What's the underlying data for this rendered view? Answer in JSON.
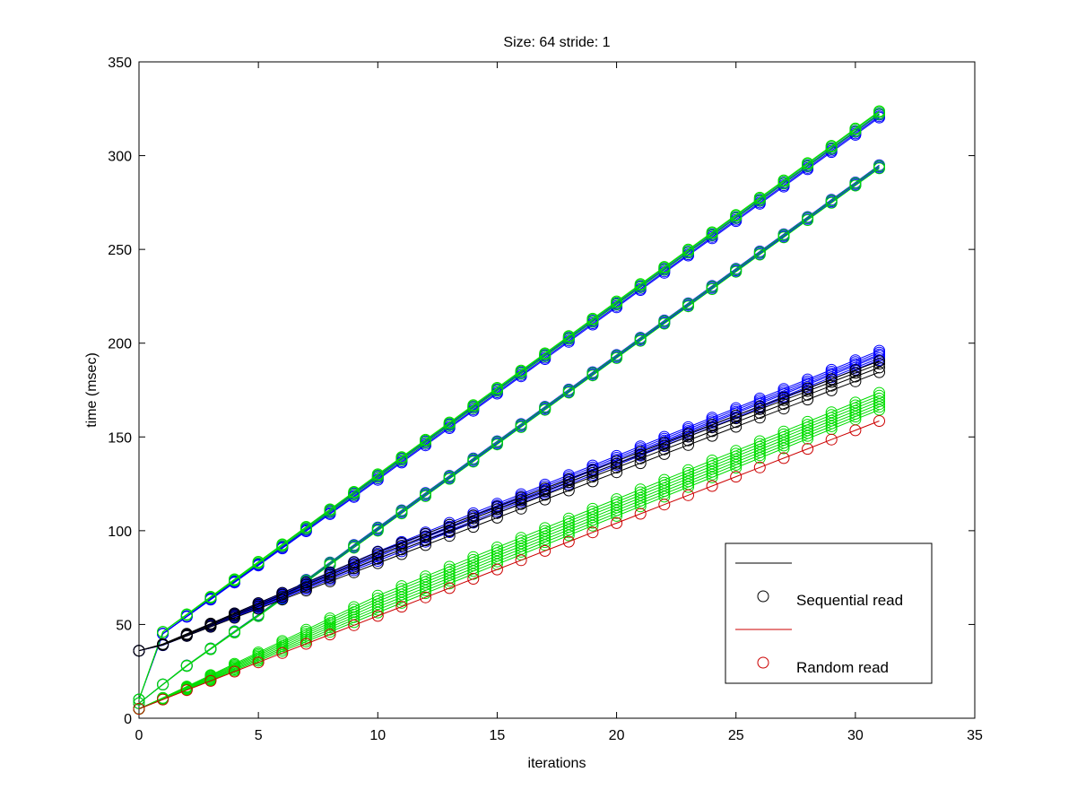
{
  "chart_data": {
    "type": "line",
    "title": "Size: 64 stride: 1",
    "xlabel": "iterations",
    "ylabel": "time (msec)",
    "xlim": [
      0,
      35
    ],
    "ylim": [
      0,
      350
    ],
    "xticks": [
      0,
      5,
      10,
      15,
      20,
      25,
      30,
      35
    ],
    "yticks": [
      0,
      50,
      100,
      150,
      200,
      250,
      300,
      350
    ],
    "grid": false,
    "marker": "circle",
    "legend_position": "bottom-right",
    "legend": [
      {
        "label": "",
        "style": "line",
        "color": "#000000"
      },
      {
        "label": "Sequential read",
        "style": "marker",
        "color": "#000000"
      },
      {
        "label": "",
        "style": "line",
        "color": "#cc0000"
      },
      {
        "label": "Random read",
        "style": "marker",
        "color": "#cc0000"
      }
    ],
    "series": [
      {
        "color": "#0000ff",
        "start": 10,
        "first": 45,
        "slope": 9.2,
        "offsets": [
          0,
          0.8,
          -0.7,
          1.4
        ]
      },
      {
        "color": "#00dd00",
        "start": 10,
        "first": 46,
        "slope": 9.22,
        "offsets": [
          0.6,
          -0.5,
          1.1
        ]
      },
      {
        "color": "#0000ff",
        "start": 8,
        "first": 18,
        "slope": 9.2,
        "first_point_at_x2": 28,
        "override": {
          "2": 28,
          "3": 37,
          "4": 46
        },
        "offsets": [
          0,
          0.9,
          -0.6
        ]
      },
      {
        "color": "#00dd00",
        "start": 8,
        "first": 18,
        "slope": 9.2,
        "override": {
          "2": 28,
          "3": 37,
          "4": 46
        },
        "offsets": [
          0.5,
          -0.8
        ]
      },
      {
        "color": "#0000ff",
        "start": 36,
        "first": 39,
        "slope": 5.1,
        "offsets": [
          0,
          1.2,
          -1.0,
          2.0,
          3.0,
          4.0
        ]
      },
      {
        "color": "#000000",
        "start": 36,
        "first": 39,
        "slope": 4.85,
        "offsets": [
          0,
          2.5,
          4.5,
          6.0
        ]
      },
      {
        "color": "#00dd00",
        "start": 5,
        "first": 10,
        "slope": 5.15,
        "offsets": [
          0,
          1.5,
          3.0,
          4.5,
          6.0,
          7.5,
          9.0
        ]
      },
      {
        "color": "#cc0000",
        "start": 5,
        "first": 10,
        "slope": 4.95,
        "offsets": [
          0
        ]
      }
    ]
  }
}
